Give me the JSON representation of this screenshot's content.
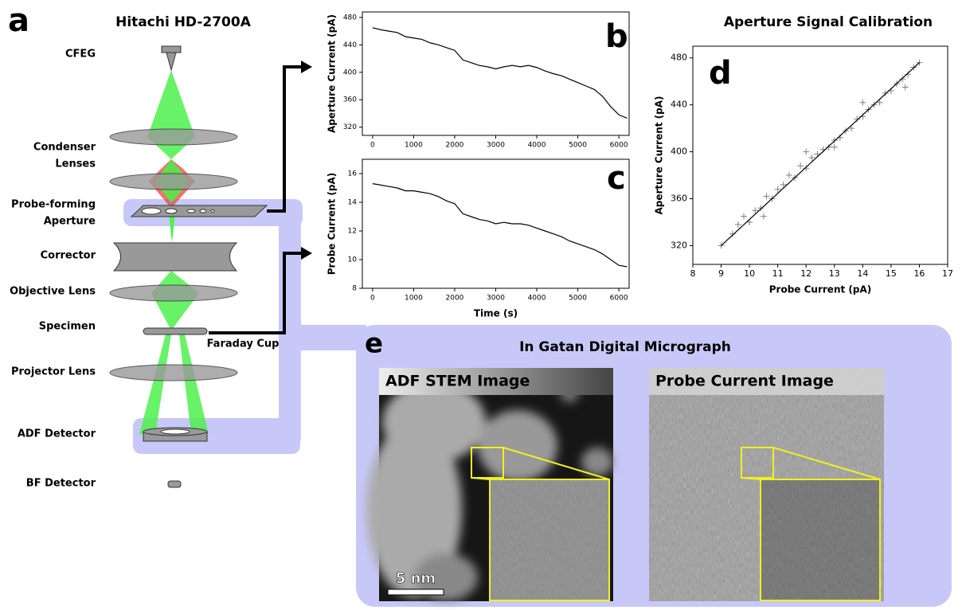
{
  "panel_labels": [
    "a",
    "b",
    "c",
    "d",
    "e"
  ],
  "diagram": {
    "title": "Hitachi HD-2700A",
    "components": [
      [
        "CFEG"
      ],
      [
        "Condenser",
        "Lenses"
      ],
      [
        "Probe-forming",
        "Aperture"
      ],
      [
        "Corrector"
      ],
      [
        "Objective Lens"
      ],
      [
        "Specimen"
      ],
      [
        "Projector Lens"
      ],
      [
        "ADF Detector"
      ],
      [
        "BF Detector"
      ]
    ],
    "faraday_cup": "Faraday Cup"
  },
  "chart_data": [
    {
      "type": "line",
      "ylabel": "Aperture Current (pA)",
      "color": "#000000",
      "x": [
        0,
        200,
        400,
        600,
        800,
        1000,
        1200,
        1400,
        1600,
        1800,
        2000,
        2200,
        2400,
        2600,
        2800,
        3000,
        3200,
        3400,
        3600,
        3800,
        4000,
        4200,
        4400,
        4600,
        4800,
        5000,
        5200,
        5400,
        5600,
        5800,
        6000,
        6200
      ],
      "values": [
        465,
        462,
        460,
        458,
        452,
        450,
        448,
        443,
        440,
        436,
        432,
        418,
        414,
        410,
        408,
        405,
        408,
        410,
        408,
        410,
        407,
        402,
        398,
        395,
        390,
        385,
        380,
        375,
        365,
        350,
        338,
        333
      ],
      "xlim": [
        -250,
        6250
      ],
      "xticks": [
        0,
        1000,
        2000,
        3000,
        4000,
        5000,
        6000
      ],
      "ylim": [
        308,
        488
      ],
      "yticks": [
        320,
        360,
        400,
        440,
        480
      ]
    },
    {
      "type": "line",
      "ylabel": "Probe Current (pA)",
      "xlabel": "Time (s)",
      "color": "#000000",
      "x": [
        0,
        200,
        400,
        600,
        800,
        1000,
        1200,
        1400,
        1600,
        1800,
        2000,
        2200,
        2400,
        2600,
        2800,
        3000,
        3200,
        3400,
        3600,
        3800,
        4000,
        4200,
        4400,
        4600,
        4800,
        5000,
        5200,
        5400,
        5600,
        5800,
        6000,
        6200
      ],
      "values": [
        15.3,
        15.2,
        15.1,
        15.0,
        14.8,
        14.8,
        14.7,
        14.6,
        14.4,
        14.1,
        13.9,
        13.2,
        13.0,
        12.8,
        12.7,
        12.5,
        12.6,
        12.5,
        12.5,
        12.4,
        12.2,
        12.0,
        11.8,
        11.6,
        11.3,
        11.1,
        10.9,
        10.7,
        10.4,
        10.0,
        9.6,
        9.5
      ],
      "xlim": [
        -250,
        6250
      ],
      "xticks": [
        0,
        1000,
        2000,
        3000,
        4000,
        5000,
        6000
      ],
      "ylim": [
        8,
        17
      ],
      "yticks": [
        8,
        10,
        12,
        14,
        16
      ]
    },
    {
      "type": "scatter",
      "title": "Aperture Signal Calibration",
      "xlabel": "Probe Current (pA)",
      "ylabel": "Aperture Current (pA)",
      "color": "#808080",
      "x": [
        9.0,
        9.4,
        9.6,
        9.8,
        10.0,
        10.2,
        10.4,
        10.6,
        10.8,
        11.0,
        11.2,
        11.4,
        11.6,
        11.8,
        12.0,
        12.2,
        12.4,
        12.6,
        12.8,
        13.0,
        13.2,
        13.4,
        13.6,
        13.8,
        14.0,
        14.2,
        14.4,
        14.6,
        14.8,
        15.0,
        15.2,
        15.4,
        15.6,
        15.8,
        16.0,
        12.0,
        13.0,
        14.0,
        10.5,
        15.5
      ],
      "values": [
        320,
        330,
        338,
        345,
        340,
        350,
        352,
        362,
        360,
        368,
        372,
        380,
        378,
        388,
        386,
        395,
        398,
        402,
        404,
        410,
        412,
        418,
        420,
        428,
        430,
        436,
        440,
        442,
        450,
        452,
        458,
        462,
        466,
        472,
        476,
        400,
        404,
        442,
        345,
        455
      ],
      "fit": {
        "x": [
          9,
          16
        ],
        "values": [
          320,
          476
        ],
        "color": "#000000"
      },
      "xlim": [
        8,
        17
      ],
      "xticks": [
        8,
        9,
        10,
        11,
        12,
        13,
        14,
        15,
        16,
        17
      ],
      "ylim": [
        304,
        490
      ],
      "yticks": [
        320,
        360,
        400,
        440,
        480
      ]
    }
  ],
  "panel_e": {
    "title": "In Gatan Digital Micrograph",
    "images": [
      "ADF STEM Image",
      "Probe Current Image"
    ],
    "scale_bar": "5 nm"
  }
}
